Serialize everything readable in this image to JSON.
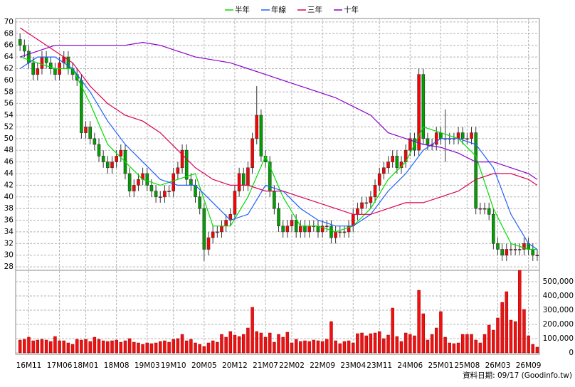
{
  "chart_data": {
    "type": "candlestick",
    "legend": "top",
    "up_color": "#ff0000",
    "down_color": "#00a000",
    "volume_color": "#ee1111",
    "open": [
      67,
      66,
      65,
      63,
      61,
      62,
      64,
      63,
      62,
      61,
      63,
      64,
      62,
      61,
      60,
      51,
      52,
      50,
      49,
      47,
      46,
      45,
      46,
      47,
      48,
      44,
      41,
      42,
      43,
      44,
      42,
      41,
      40,
      40,
      41,
      41,
      44,
      45,
      48,
      43,
      42,
      40,
      38,
      31,
      33,
      34,
      34,
      35,
      36,
      37,
      41,
      44,
      42,
      45,
      50,
      54,
      47,
      46,
      41,
      38,
      35,
      34,
      35,
      36,
      34,
      35,
      34,
      35,
      35,
      34,
      35,
      35,
      33,
      34,
      34,
      34,
      35,
      37,
      38,
      39,
      39,
      40,
      42,
      44,
      45,
      46,
      47,
      45,
      46,
      48,
      50,
      48,
      61,
      50,
      49,
      49,
      51,
      50,
      50,
      50,
      50,
      51,
      50,
      50,
      51,
      38,
      38,
      38,
      37,
      32,
      31,
      30,
      31,
      31,
      31,
      31,
      32,
      31,
      30
    ],
    "high": [
      68,
      67,
      66,
      64,
      63,
      65,
      65,
      64,
      63,
      64,
      65,
      65,
      63,
      62,
      61,
      53,
      53,
      51,
      50,
      48,
      47,
      47,
      48,
      49,
      49,
      45,
      43,
      44,
      45,
      45,
      43,
      42,
      41,
      42,
      42,
      45,
      46,
      49,
      49,
      44,
      43,
      41,
      39,
      34,
      35,
      35,
      36,
      37,
      38,
      42,
      45,
      45,
      46,
      51,
      59,
      55,
      48,
      47,
      42,
      39,
      36,
      36,
      37,
      37,
      36,
      36,
      36,
      36,
      36,
      36,
      36,
      36,
      35,
      35,
      35,
      36,
      38,
      39,
      40,
      40,
      41,
      43,
      45,
      46,
      47,
      48,
      48,
      47,
      49,
      51,
      51,
      62,
      62,
      51,
      50,
      52,
      52,
      55,
      51,
      51,
      52,
      52,
      51,
      52,
      52,
      39,
      39,
      39,
      38,
      33,
      32,
      32,
      32,
      32,
      32,
      33,
      33,
      32,
      31
    ],
    "low": [
      65,
      64,
      62,
      60,
      60,
      61,
      62,
      61,
      60,
      60,
      62,
      61,
      60,
      59,
      50,
      50,
      49,
      48,
      46,
      45,
      44,
      44,
      45,
      46,
      43,
      40,
      40,
      41,
      42,
      41,
      40,
      39,
      39,
      39,
      40,
      40,
      43,
      44,
      42,
      41,
      39,
      37,
      29,
      30,
      32,
      33,
      33,
      34,
      35,
      36,
      40,
      41,
      41,
      44,
      49,
      46,
      45,
      40,
      37,
      34,
      33,
      33,
      34,
      33,
      33,
      33,
      33,
      34,
      33,
      33,
      34,
      32,
      32,
      33,
      33,
      33,
      34,
      36,
      37,
      38,
      38,
      39,
      41,
      43,
      44,
      45,
      44,
      44,
      45,
      47,
      47,
      47,
      49,
      48,
      48,
      48,
      49,
      46,
      49,
      49,
      49,
      49,
      49,
      49,
      37,
      37,
      37,
      36,
      31,
      30,
      29,
      29,
      30,
      30,
      30,
      30,
      30,
      29,
      29
    ],
    "close": [
      66,
      65,
      63,
      61,
      62,
      64,
      63,
      62,
      61,
      63,
      64,
      62,
      61,
      60,
      51,
      52,
      50,
      49,
      47,
      46,
      45,
      46,
      47,
      48,
      44,
      41,
      42,
      43,
      44,
      42,
      41,
      40,
      40,
      41,
      41,
      44,
      45,
      48,
      43,
      42,
      40,
      38,
      31,
      33,
      34,
      34,
      35,
      36,
      37,
      41,
      44,
      42,
      45,
      50,
      54,
      47,
      46,
      41,
      38,
      35,
      34,
      35,
      36,
      34,
      35,
      34,
      35,
      35,
      34,
      35,
      35,
      33,
      34,
      34,
      34,
      35,
      37,
      38,
      39,
      39,
      40,
      42,
      44,
      45,
      46,
      47,
      45,
      46,
      48,
      50,
      48,
      61,
      50,
      49,
      49,
      51,
      50,
      50,
      50,
      50,
      51,
      50,
      50,
      51,
      38,
      38,
      38,
      37,
      32,
      31,
      30,
      31,
      31,
      31,
      31,
      32,
      31,
      30,
      30
    ],
    "volume": [
      90000,
      95000,
      110000,
      85000,
      90000,
      95000,
      90000,
      80000,
      115000,
      85000,
      85000,
      70000,
      60000,
      95000,
      90000,
      95000,
      80000,
      110000,
      95000,
      85000,
      80000,
      85000,
      90000,
      75000,
      85000,
      100000,
      75000,
      70000,
      60000,
      70000,
      65000,
      70000,
      80000,
      85000,
      75000,
      95000,
      100000,
      130000,
      85000,
      95000,
      70000,
      60000,
      45000,
      70000,
      85000,
      75000,
      130000,
      110000,
      150000,
      125000,
      115000,
      130000,
      175000,
      320000,
      150000,
      140000,
      110000,
      140000,
      75000,
      130000,
      110000,
      145000,
      70000,
      95000,
      80000,
      85000,
      80000,
      90000,
      85000,
      80000,
      95000,
      220000,
      85000,
      65000,
      80000,
      85000,
      70000,
      135000,
      140000,
      120000,
      135000,
      140000,
      150000,
      100000,
      125000,
      315000,
      115000,
      80000,
      140000,
      130000,
      120000,
      440000,
      275000,
      90000,
      130000,
      175000,
      290000,
      110000,
      70000,
      65000,
      70000,
      130000,
      130000,
      130000,
      90000,
      70000,
      130000,
      195000,
      160000,
      245000,
      355000,
      430000,
      230000,
      220000,
      580000,
      305000,
      120000,
      60000,
      40000
    ],
    "series": [
      {
        "name": "半年",
        "color": "#00dd00",
        "x": [
          0,
          4,
          8,
          12,
          16,
          20,
          24,
          28,
          32,
          36,
          40,
          44,
          48,
          52,
          56,
          60,
          64,
          68,
          72,
          76,
          80,
          84,
          88,
          92,
          96,
          100,
          104,
          108,
          112,
          116,
          118
        ],
        "values": [
          64,
          63,
          62,
          62,
          56,
          49,
          46,
          43,
          42,
          43,
          44,
          35,
          35,
          40,
          47,
          40,
          35,
          35,
          34,
          35,
          38,
          43,
          46,
          52,
          51,
          50,
          47,
          38,
          32,
          31,
          31
        ]
      },
      {
        "name": "年線",
        "color": "#1f5fff",
        "x": [
          0,
          4,
          8,
          12,
          16,
          20,
          24,
          28,
          32,
          36,
          40,
          44,
          48,
          52,
          56,
          60,
          64,
          68,
          72,
          76,
          80,
          84,
          88,
          92,
          96,
          100,
          104,
          108,
          112,
          116,
          118
        ],
        "values": [
          62,
          64,
          64,
          62,
          58,
          53,
          49,
          46,
          43,
          42,
          42,
          39,
          36,
          37,
          42,
          41,
          38,
          36,
          35,
          35,
          37,
          41,
          44,
          48,
          50,
          50,
          49,
          45,
          37,
          32,
          31
        ]
      },
      {
        "name": "三年",
        "color": "#dd0055",
        "x": [
          0,
          4,
          8,
          12,
          16,
          20,
          24,
          28,
          32,
          36,
          40,
          44,
          48,
          52,
          56,
          60,
          64,
          68,
          72,
          76,
          80,
          84,
          88,
          92,
          96,
          100,
          104,
          108,
          112,
          116,
          118
        ],
        "values": [
          69,
          67,
          65,
          63,
          59,
          56,
          54,
          53,
          51,
          48,
          45,
          43,
          42,
          42,
          41,
          41,
          40,
          39,
          38,
          37,
          37,
          38,
          39,
          39,
          40,
          41,
          43,
          44,
          44,
          43,
          42
        ]
      },
      {
        "name": "十年",
        "color": "#8800cc",
        "x": [
          0,
          4,
          8,
          12,
          16,
          20,
          24,
          28,
          32,
          36,
          40,
          44,
          48,
          52,
          56,
          60,
          64,
          68,
          72,
          76,
          80,
          84,
          88,
          92,
          96,
          100,
          104,
          108,
          112,
          116,
          118
        ],
        "values": [
          64,
          65,
          66,
          66,
          66,
          66,
          66,
          66.5,
          66,
          65,
          64,
          63.5,
          63,
          62,
          61,
          60,
          59,
          58,
          57,
          55.5,
          54,
          51,
          50,
          49,
          48.5,
          47.5,
          46,
          46,
          45,
          44,
          43
        ]
      }
    ],
    "xlim": [
      -1,
      118.5
    ],
    "xticks": [
      {
        "value": 2,
        "label": "16M11"
      },
      {
        "value": 9,
        "label": "17M06"
      },
      {
        "value": 15,
        "label": "18M01"
      },
      {
        "value": 22,
        "label": "18M08"
      },
      {
        "value": 29,
        "label": "19M03"
      },
      {
        "value": 35,
        "label": "19M10"
      },
      {
        "value": 42,
        "label": "20M05"
      },
      {
        "value": 49,
        "label": "20M12"
      },
      {
        "value": 56,
        "label": "21M07"
      },
      {
        "value": 62,
        "label": "22M02"
      },
      {
        "value": 69,
        "label": "22M09"
      },
      {
        "value": 76,
        "label": "23M04"
      },
      {
        "value": 82,
        "label": "23M11"
      },
      {
        "value": 89,
        "label": "24M06"
      },
      {
        "value": 96,
        "label": "25M01"
      },
      {
        "value": 102,
        "label": "25M08"
      },
      {
        "value": 109,
        "label": "26M03"
      },
      {
        "value": 116,
        "label": "26M09"
      }
    ],
    "ylim": [
      27.4,
      70.6
    ],
    "yticks": [
      28,
      30,
      32,
      34,
      36,
      38,
      40,
      42,
      44,
      46,
      48,
      50,
      52,
      54,
      56,
      58,
      60,
      62,
      64,
      66,
      68,
      70
    ],
    "y2lim": [
      -10000,
      580000
    ],
    "y2ticks": [
      0,
      {
        "value": 100000,
        "label": "100,000"
      },
      {
        "value": 200000,
        "label": "200,000"
      },
      {
        "value": 300000,
        "label": "300,000"
      },
      {
        "value": 400000,
        "label": "400,000"
      },
      {
        "value": 500000,
        "label": "500,000"
      }
    ],
    "grid": true,
    "footer": "資料日期: 09/17 (Goodinfo.tw)"
  }
}
